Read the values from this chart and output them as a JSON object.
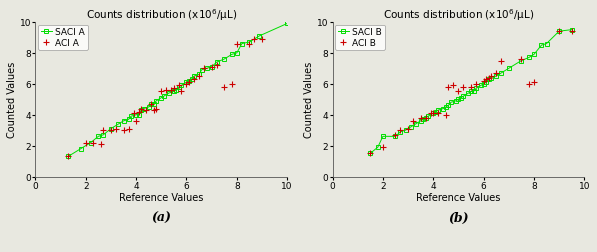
{
  "title": "Counts distribution (x10$^6$/μL)",
  "xlabel": "Reference Values",
  "ylabel": "Counted Values",
  "xlim": [
    0,
    10
  ],
  "ylim": [
    0,
    10
  ],
  "xticks": [
    0,
    2,
    4,
    6,
    8,
    10
  ],
  "yticks": [
    0,
    2,
    4,
    6,
    8,
    10
  ],
  "label_a": "(a)",
  "label_b": "(b)",
  "saci_a_x": [
    1.3,
    1.8,
    2.2,
    2.5,
    2.7,
    3.0,
    3.3,
    3.5,
    3.7,
    3.8,
    4.0,
    4.1,
    4.2,
    4.3,
    4.5,
    4.6,
    4.7,
    4.8,
    5.0,
    5.1,
    5.3,
    5.5,
    5.6,
    5.7,
    5.8,
    6.0,
    6.1,
    6.2,
    6.3,
    6.5,
    6.6,
    6.8,
    7.0,
    7.2,
    7.5,
    7.8,
    8.0,
    8.2,
    8.5,
    8.9,
    10.0
  ],
  "saci_a_y": [
    1.3,
    1.8,
    2.2,
    2.6,
    2.7,
    3.1,
    3.4,
    3.6,
    3.7,
    3.9,
    4.0,
    4.0,
    4.3,
    4.4,
    4.5,
    4.7,
    4.7,
    4.9,
    5.1,
    5.2,
    5.4,
    5.5,
    5.6,
    5.8,
    5.9,
    6.1,
    6.2,
    6.3,
    6.5,
    6.6,
    6.9,
    7.0,
    7.1,
    7.4,
    7.6,
    7.9,
    8.0,
    8.6,
    8.7,
    9.1,
    9.9
  ],
  "aci_a_x": [
    1.3,
    2.0,
    2.3,
    2.6,
    2.7,
    3.0,
    3.2,
    3.5,
    3.7,
    3.9,
    4.0,
    4.1,
    4.2,
    4.4,
    4.6,
    4.7,
    4.8,
    5.0,
    5.2,
    5.4,
    5.5,
    5.7,
    5.8,
    6.0,
    6.1,
    6.3,
    6.5,
    6.7,
    7.0,
    7.2,
    7.5,
    7.8,
    8.0,
    8.5,
    8.7,
    9.0
  ],
  "aci_a_y": [
    1.3,
    2.2,
    2.2,
    2.1,
    3.0,
    3.0,
    3.1,
    3.0,
    3.1,
    4.1,
    3.6,
    4.2,
    4.4,
    4.3,
    4.7,
    4.3,
    4.4,
    5.5,
    5.6,
    5.6,
    5.7,
    5.9,
    5.5,
    6.0,
    6.1,
    6.3,
    6.5,
    7.0,
    7.1,
    7.2,
    5.8,
    6.0,
    8.6,
    8.6,
    8.9,
    8.9
  ],
  "saci_b_x": [
    1.5,
    1.8,
    2.0,
    2.5,
    2.7,
    2.9,
    3.1,
    3.3,
    3.5,
    3.6,
    3.7,
    3.8,
    4.0,
    4.1,
    4.2,
    4.4,
    4.5,
    4.6,
    4.7,
    4.9,
    5.0,
    5.1,
    5.2,
    5.4,
    5.5,
    5.6,
    5.7,
    5.9,
    6.0,
    6.1,
    6.2,
    6.3,
    6.5,
    6.7,
    7.0,
    7.5,
    7.8,
    8.0,
    8.3,
    8.5,
    9.0,
    9.5
  ],
  "saci_b_y": [
    1.5,
    1.9,
    2.6,
    2.6,
    2.9,
    3.0,
    3.2,
    3.4,
    3.6,
    3.7,
    3.8,
    3.9,
    4.1,
    4.2,
    4.3,
    4.4,
    4.5,
    4.6,
    4.8,
    4.9,
    5.0,
    5.1,
    5.2,
    5.4,
    5.5,
    5.5,
    5.7,
    5.9,
    6.0,
    6.1,
    6.3,
    6.4,
    6.5,
    6.7,
    7.0,
    7.5,
    7.7,
    7.9,
    8.5,
    8.6,
    9.4,
    9.5
  ],
  "aci_b_x": [
    1.5,
    2.0,
    2.5,
    2.7,
    3.0,
    3.2,
    3.5,
    3.7,
    3.9,
    4.0,
    4.2,
    4.5,
    4.6,
    4.8,
    5.0,
    5.2,
    5.5,
    5.7,
    6.0,
    6.1,
    6.2,
    6.3,
    6.5,
    6.7,
    7.5,
    7.8,
    8.0,
    9.0,
    9.5
  ],
  "aci_b_y": [
    1.5,
    1.9,
    2.7,
    3.0,
    3.1,
    3.6,
    3.8,
    3.8,
    4.1,
    4.1,
    4.1,
    4.0,
    5.8,
    5.9,
    5.5,
    5.8,
    5.8,
    6.0,
    6.2,
    6.3,
    6.4,
    6.5,
    6.7,
    7.5,
    7.6,
    6.0,
    6.1,
    9.4,
    9.4
  ],
  "saci_color": "#00dd00",
  "aci_color": "#cc0000",
  "bg_color": "#e8e8e0",
  "title_fontsize": 7.5,
  "axis_label_fontsize": 7,
  "tick_fontsize": 6.5,
  "legend_fontsize": 6.5
}
